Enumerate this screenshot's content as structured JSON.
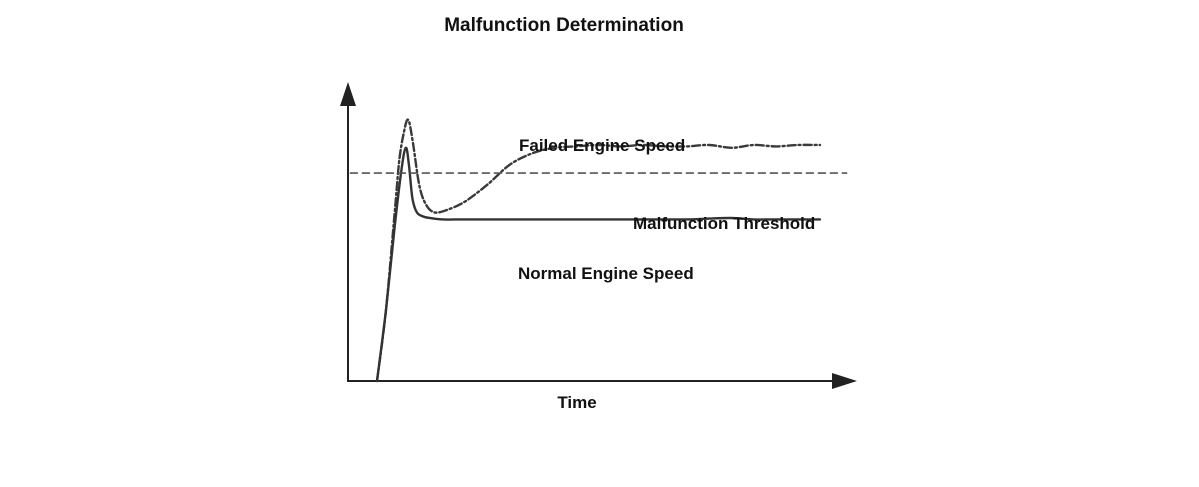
{
  "chart_data": {
    "type": "line",
    "title": "Malfunction Determination",
    "xlabel": "Time",
    "ylabel": "",
    "xlim": [
      0,
      100
    ],
    "ylim": [
      0,
      100
    ],
    "grid": false,
    "legend": "none",
    "series": [
      {
        "name": "Failed Engine Speed",
        "style": "dash-dot",
        "color": "#3a3a3a",
        "x": [
          0,
          2,
          4,
          5,
          6,
          7,
          8,
          9.5,
          11,
          13,
          16,
          20,
          25,
          30,
          35,
          40,
          45,
          50,
          55,
          60,
          65,
          70,
          75,
          80,
          85,
          90,
          95,
          100
        ],
        "y": [
          0,
          25,
          60,
          78,
          88,
          93,
          86,
          70,
          63,
          60,
          61,
          64,
          70,
          77,
          81,
          83,
          83.5,
          84,
          83.5,
          84,
          83.5,
          83.5,
          84,
          83,
          84,
          83.5,
          84,
          84
        ]
      },
      {
        "name": "Normal Engine Speed",
        "style": "solid",
        "color": "#333333",
        "x": [
          0,
          2,
          4,
          5.5,
          6.5,
          7.2,
          8,
          9,
          10.5,
          12,
          15,
          20,
          30,
          40,
          50,
          60,
          70,
          75,
          80,
          85,
          90,
          100
        ],
        "y": [
          0,
          25,
          55,
          75,
          83,
          77,
          65,
          60,
          58.5,
          58,
          57.5,
          57.5,
          57.5,
          57.5,
          57.5,
          57.5,
          57.5,
          57.8,
          58,
          57.5,
          57.5,
          57.5
        ]
      },
      {
        "name": "Malfunction Threshold",
        "style": "dashed",
        "color": "#555555",
        "x": [
          -6,
          106
        ],
        "y": [
          74,
          74
        ]
      }
    ],
    "annotations": [
      {
        "text": "Failed Engine Speed",
        "series": 0
      },
      {
        "text": "Malfunction Threshold",
        "series": 2
      },
      {
        "text": "Normal Engine Speed",
        "series": 1
      }
    ]
  }
}
